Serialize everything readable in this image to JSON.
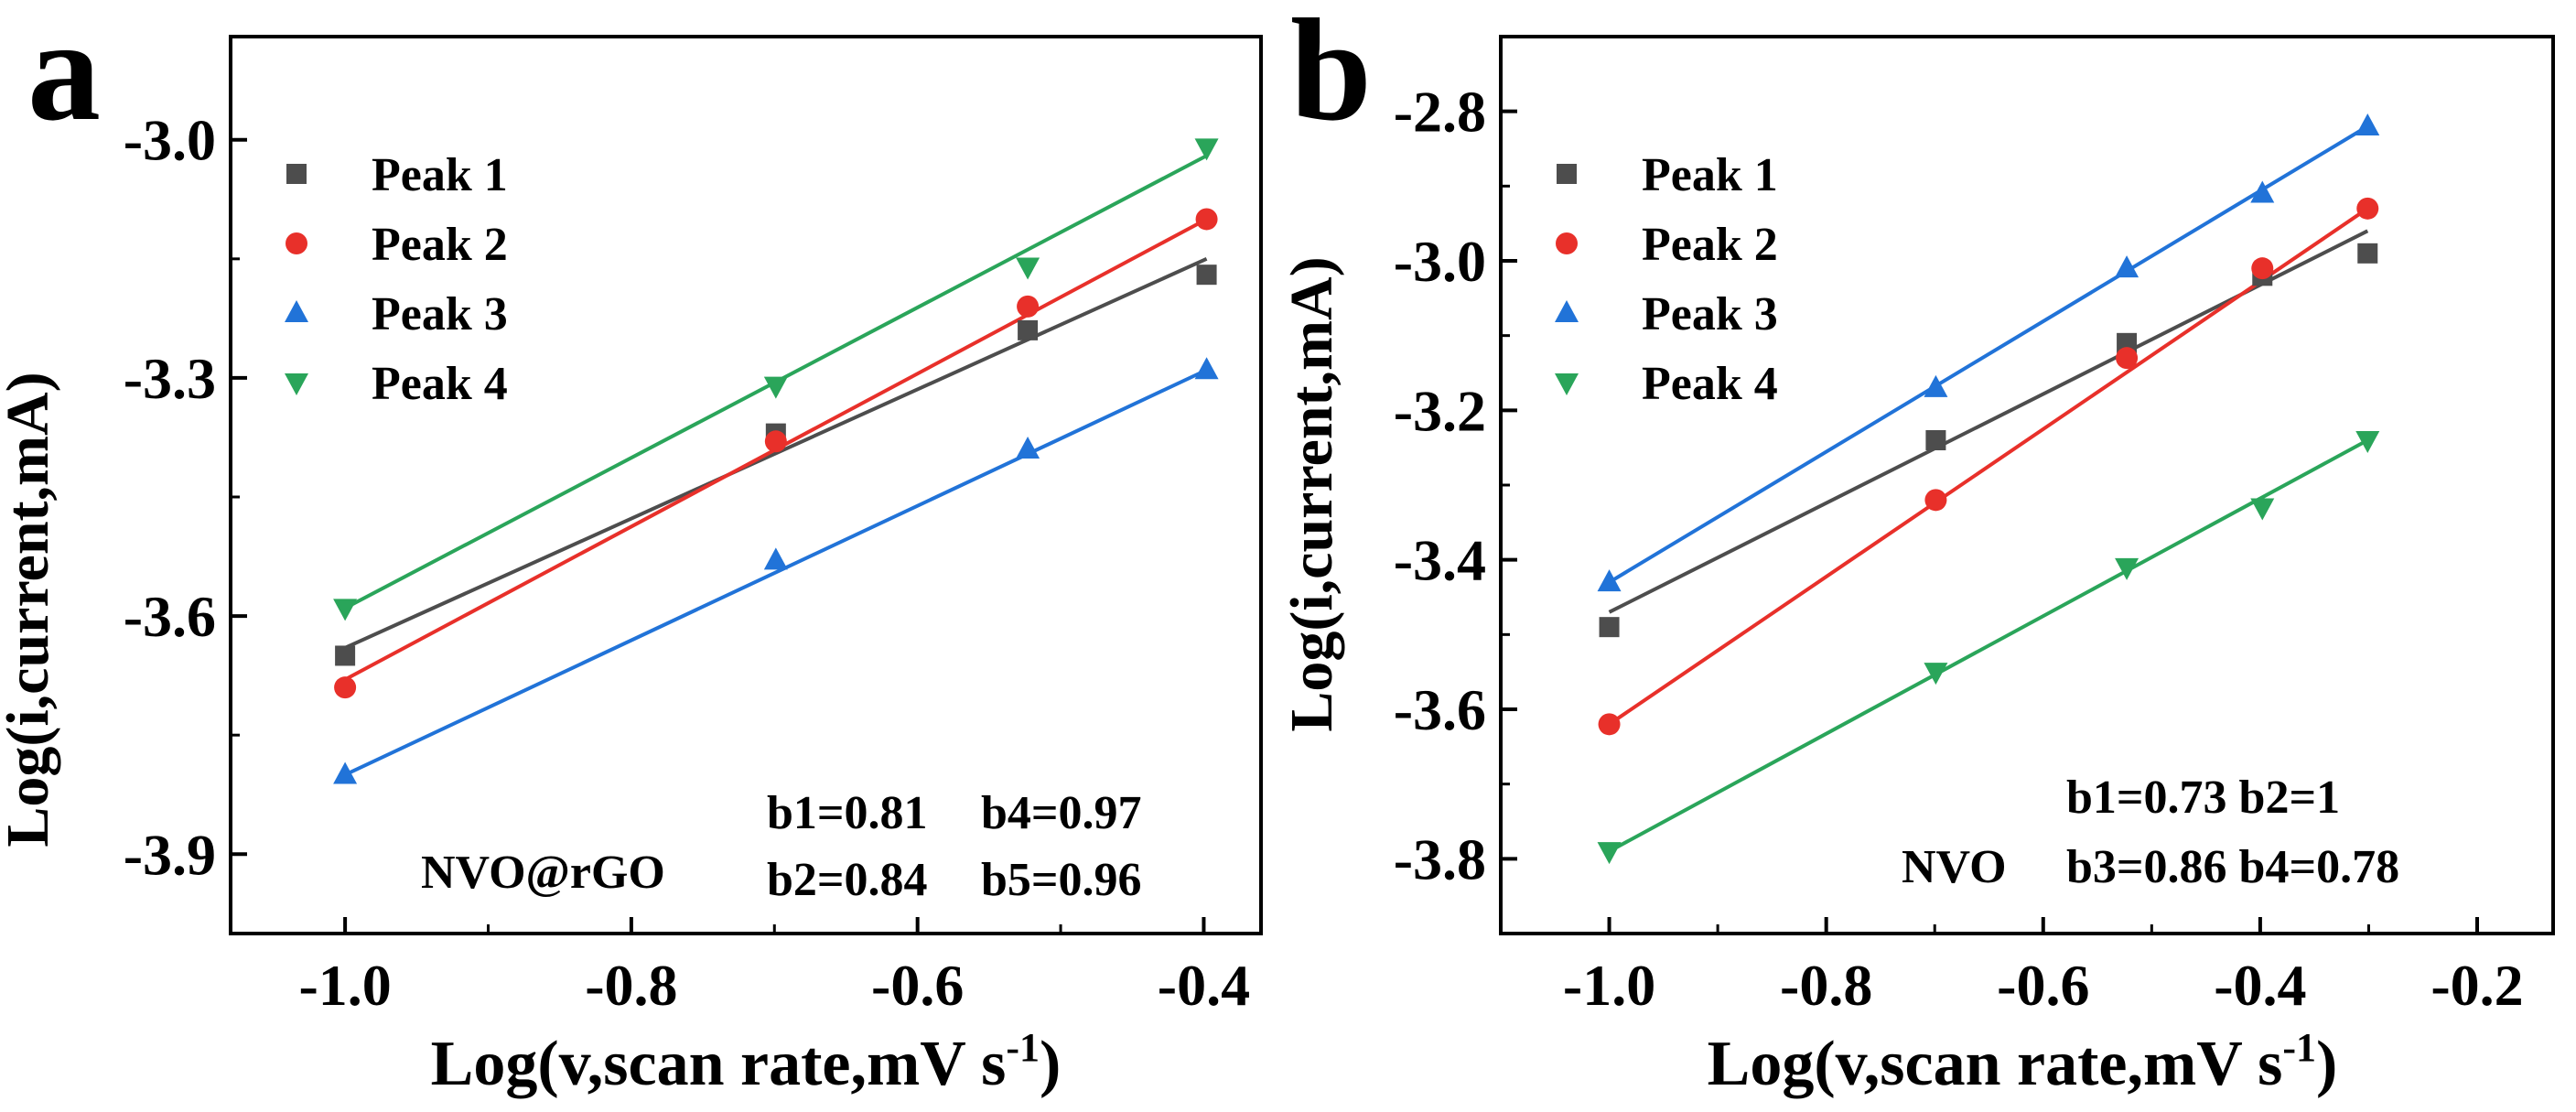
{
  "figure": {
    "panels": [
      {
        "letter": "a",
        "xlabel_main": "Log(v,scan rate,mV s",
        "xlabel_sup": "-1",
        "xlabel_end": ")",
        "ylabel": "Log(i,current,mA)",
        "annotation_name": "NVO@rGO",
        "b_values": [
          "b1=0.81",
          "b4=0.97",
          "b2=0.84",
          "b5=0.96"
        ]
      },
      {
        "letter": "b",
        "xlabel_main": "Log(v,scan rate,mV s",
        "xlabel_sup": "-1",
        "xlabel_end": ")",
        "ylabel": "Log(i,current,mA)",
        "annotation_name": "NVO",
        "b_values": [
          "b1=0.73 b2=1",
          "b3=0.86 b4=0.78"
        ]
      }
    ]
  },
  "chart_data": [
    {
      "type": "scatter",
      "panel": "a",
      "title": "",
      "xlabel": "Log(v,scan rate,mV s-1)",
      "ylabel": "Log(i,current,mA)",
      "xlim": [
        -1.08,
        -0.36
      ],
      "ylim": [
        -4.0,
        -2.87
      ],
      "xticks": [
        -1.0,
        -0.8,
        -0.6,
        -0.4
      ],
      "xtick_labels": [
        "-1.0",
        "-0.8",
        "-0.6",
        "-0.4"
      ],
      "yticks": [
        -3.9,
        -3.6,
        -3.3,
        -3.0
      ],
      "ytick_labels": [
        "-3.9",
        "-3.6",
        "-3.3",
        "-3.0"
      ],
      "legend_position": "top-left",
      "series": [
        {
          "name": "Peak 1",
          "marker": "square",
          "color": "#4d4d4d",
          "x": [
            -1.0,
            -0.699,
            -0.523,
            -0.398
          ],
          "y": [
            -3.65,
            -3.37,
            -3.24,
            -3.17
          ],
          "fit": [
            [
              -1.0,
              -3.64
            ],
            [
              -0.398,
              -3.15
            ]
          ]
        },
        {
          "name": "Peak 2",
          "marker": "circle",
          "color": "#e8302a",
          "x": [
            -1.0,
            -0.699,
            -0.523,
            -0.398
          ],
          "y": [
            -3.69,
            -3.38,
            -3.21,
            -3.1
          ],
          "fit": [
            [
              -1.0,
              -3.68
            ],
            [
              -0.398,
              -3.1
            ]
          ]
        },
        {
          "name": "Peak 3",
          "marker": "triangle-up",
          "color": "#2173d8",
          "x": [
            -1.0,
            -0.699,
            -0.523,
            -0.398
          ],
          "y": [
            -3.8,
            -3.53,
            -3.39,
            -3.29
          ],
          "fit": [
            [
              -1.0,
              -3.8
            ],
            [
              -0.398,
              -3.29
            ]
          ]
        },
        {
          "name": "Peak 4",
          "marker": "triangle-down",
          "color": "#2aa55a",
          "x": [
            -1.0,
            -0.699,
            -0.523,
            -0.398
          ],
          "y": [
            -3.59,
            -3.31,
            -3.16,
            -3.01
          ],
          "fit": [
            [
              -1.0,
              -3.59
            ],
            [
              -0.398,
              -3.02
            ]
          ]
        }
      ]
    },
    {
      "type": "scatter",
      "panel": "b",
      "title": "",
      "xlabel": "Log(v,scan rate,mV s-1)",
      "ylabel": "Log(i,current,mA)",
      "xlim": [
        -1.1,
        -0.13
      ],
      "ylim": [
        -3.9,
        -2.7
      ],
      "xticks": [
        -1.0,
        -0.8,
        -0.6,
        -0.4,
        -0.2
      ],
      "xtick_labels": [
        "-1.0",
        "-0.8",
        "-0.6",
        "-0.4",
        "-0.2"
      ],
      "yticks": [
        -3.8,
        -3.6,
        -3.4,
        -3.2,
        -3.0,
        -2.8
      ],
      "ytick_labels": [
        "-3.8",
        "-3.6",
        "-3.4",
        "-3.2",
        "-3.0",
        "-2.8"
      ],
      "legend_position": "top-left",
      "series": [
        {
          "name": "Peak 1",
          "marker": "square",
          "color": "#4d4d4d",
          "x": [
            -1.0,
            -0.699,
            -0.523,
            -0.398,
            -0.301
          ],
          "y": [
            -3.49,
            -3.24,
            -3.11,
            -3.02,
            -2.99
          ],
          "fit": [
            [
              -1.0,
              -3.47
            ],
            [
              -0.301,
              -2.96
            ]
          ]
        },
        {
          "name": "Peak 2",
          "marker": "circle",
          "color": "#e8302a",
          "x": [
            -1.0,
            -0.699,
            -0.523,
            -0.398,
            -0.301
          ],
          "y": [
            -3.62,
            -3.32,
            -3.13,
            -3.01,
            -2.93
          ],
          "fit": [
            [
              -1.0,
              -3.62
            ],
            [
              -0.301,
              -2.93
            ]
          ]
        },
        {
          "name": "Peak 3",
          "marker": "triangle-up",
          "color": "#2173d8",
          "x": [
            -1.0,
            -0.699,
            -0.523,
            -0.398,
            -0.301
          ],
          "y": [
            -3.43,
            -3.17,
            -3.01,
            -2.91,
            -2.82
          ],
          "fit": [
            [
              -1.0,
              -3.43
            ],
            [
              -0.301,
              -2.82
            ]
          ]
        },
        {
          "name": "Peak 4",
          "marker": "triangle-down",
          "color": "#2aa55a",
          "x": [
            -1.0,
            -0.699,
            -0.523,
            -0.398,
            -0.301
          ],
          "y": [
            -3.79,
            -3.55,
            -3.41,
            -3.33,
            -3.24
          ],
          "fit": [
            [
              -1.0,
              -3.79
            ],
            [
              -0.301,
              -3.24
            ]
          ]
        }
      ]
    }
  ]
}
